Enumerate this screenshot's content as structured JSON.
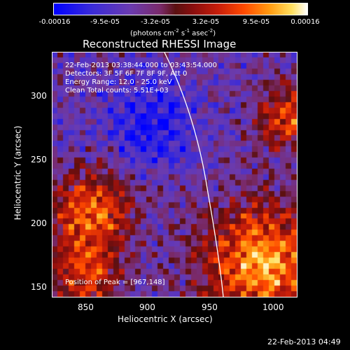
{
  "colorbar": {
    "ticks": [
      "-0.00016",
      "-9.5e-05",
      "-3.2e-05",
      "3.2e-05",
      "9.5e-05",
      "0.00016"
    ],
    "unit_label": "(photons cm",
    "unit_exp1": "-2",
    "unit_mid1": " s",
    "unit_exp2": "-1",
    "unit_mid2": " asec",
    "unit_exp3": "-2",
    "unit_end": ")"
  },
  "title": "Reconstructed RHESSI Image",
  "info": {
    "time_range": "22-Feb-2013 03:38:44.000 to 03:43:54.000",
    "detectors": "Detectors: 3F 5F 6F 7F 8F 9F, Att 0",
    "energy": "Energy Range: 12.0 - 25.0 keV",
    "clean": "Clean    Total counts: 5.51E+03"
  },
  "peak": "Position of Peak = [967,148]",
  "axes": {
    "xlabel": "Heliocentric X (arcsec)",
    "ylabel": "Heliocentric Y (arcsec)",
    "xticks": [
      "850",
      "900",
      "950",
      "1000"
    ],
    "yticks": [
      "300",
      "250",
      "200",
      "150"
    ]
  },
  "timestamp": "22-Feb-2013 04:49"
}
